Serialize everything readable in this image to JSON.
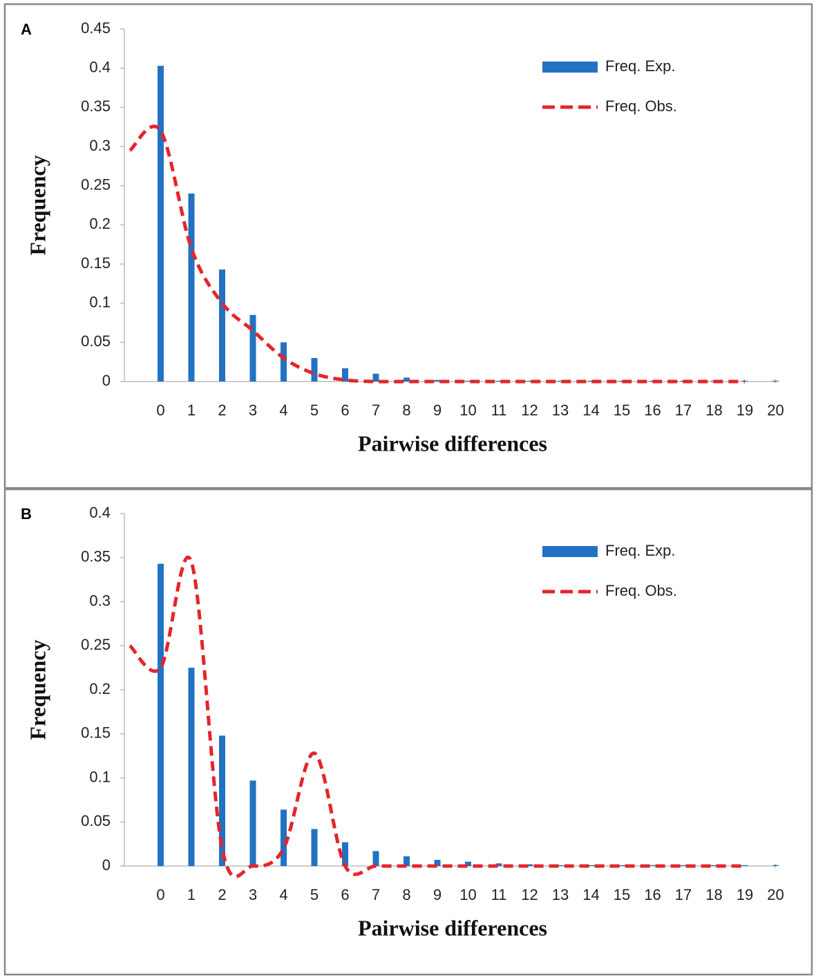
{
  "chart_data": [
    {
      "type": "bar_line",
      "panel_label": "A",
      "x_label": "Pairwise differences",
      "y_label": "Frequency",
      "categories": [
        null,
        0,
        1,
        2,
        3,
        4,
        5,
        6,
        7,
        8,
        9,
        10,
        11,
        12,
        13,
        14,
        15,
        16,
        17,
        18,
        19,
        20
      ],
      "series": [
        {
          "name": "Freq. Exp.",
          "kind": "bar",
          "color": "#2272c3",
          "values": [
            null,
            0.403,
            0.24,
            0.143,
            0.085,
            0.05,
            0.03,
            0.017,
            0.01,
            0.005,
            0.002,
            0.001,
            0.001,
            0.001,
            0.001,
            0.001,
            0.001,
            0.001,
            0.001,
            0.001,
            0.001,
            0.001
          ]
        },
        {
          "name": "Freq. Obs.",
          "kind": "line",
          "color": "#e3262b",
          "values": [
            0.295,
            0.32,
            0.17,
            0.1,
            0.065,
            0.03,
            0.01,
            0.002,
            0,
            0,
            0,
            0,
            0,
            0,
            0,
            0,
            0,
            0,
            0,
            0,
            0,
            null
          ]
        }
      ],
      "ylim": [
        0,
        0.45
      ],
      "yticks": [
        0,
        0.05,
        0.1,
        0.15,
        0.2,
        0.25,
        0.3,
        0.35,
        0.4,
        0.45
      ],
      "legend": "upper right"
    },
    {
      "type": "bar_line",
      "panel_label": "B",
      "x_label": "Pairwise differences",
      "y_label": "Frequency",
      "categories": [
        null,
        0,
        1,
        2,
        3,
        4,
        5,
        6,
        7,
        8,
        9,
        10,
        11,
        12,
        13,
        14,
        15,
        16,
        17,
        18,
        19,
        20
      ],
      "series": [
        {
          "name": "Freq. Exp.",
          "kind": "bar",
          "color": "#2272c3",
          "values": [
            null,
            0.343,
            0.225,
            0.148,
            0.097,
            0.064,
            0.042,
            0.027,
            0.017,
            0.011,
            0.007,
            0.005,
            0.003,
            0.002,
            0.001,
            0.001,
            0.001,
            0.001,
            0.001,
            0.001,
            0.001,
            0.001
          ]
        },
        {
          "name": "Freq. Obs.",
          "kind": "line",
          "color": "#e3262b",
          "values": [
            0.25,
            0.225,
            0.345,
            0.02,
            0,
            0.02,
            0.128,
            0,
            0,
            0,
            0,
            0,
            0,
            0,
            0,
            0,
            0,
            0,
            0,
            0,
            0,
            null
          ]
        }
      ],
      "ylim": [
        0,
        0.4
      ],
      "yticks": [
        0,
        0.05,
        0.1,
        0.15,
        0.2,
        0.25,
        0.3,
        0.35,
        0.4
      ],
      "legend": "upper right"
    }
  ]
}
